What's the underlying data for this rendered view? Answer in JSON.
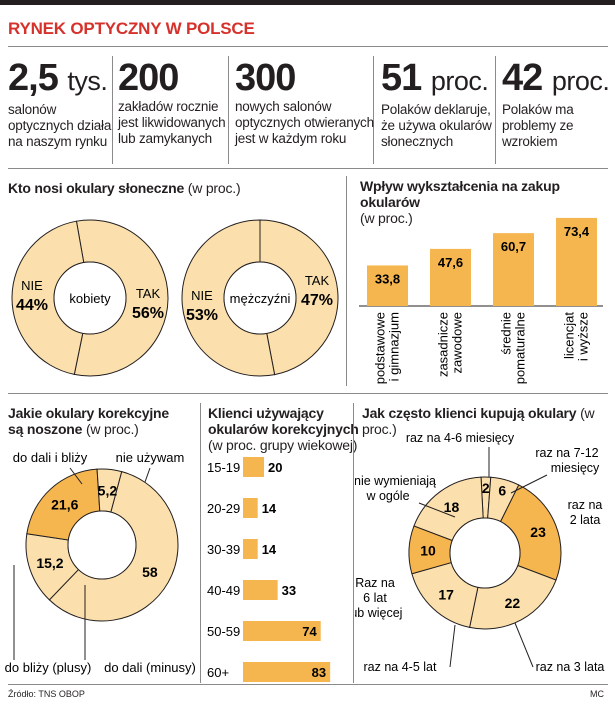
{
  "title": "RYNEK OPTYCZNY W POLSCE",
  "stats": [
    {
      "number": "2,5",
      "unit": "tys.",
      "desc": [
        "salonów",
        "optycznych działa",
        "na naszym rynku"
      ]
    },
    {
      "number": "200",
      "unit": "",
      "desc": [
        "zakładów rocznie",
        "jest likwidowanych",
        "lub zamykanych"
      ]
    },
    {
      "number": "300",
      "unit": "",
      "desc": [
        "nowych salonów",
        "optycznych otwieranych",
        "jest w każdym roku"
      ]
    },
    {
      "number": "51",
      "unit": "proc.",
      "desc": [
        "Polaków deklaruje,",
        "że używa okularów",
        "słonecznych"
      ]
    },
    {
      "number": "42",
      "unit": "proc.",
      "desc": [
        "Polaków ma",
        "problemy ze",
        "wzrokiem"
      ]
    }
  ],
  "sunglasses": {
    "title": "Kto nosi okulary słoneczne",
    "unit": "(w proc.)"
  },
  "education": {
    "title": "Wpływ wykształcenia na zakup okularów",
    "unit": "(w proc.)"
  },
  "corrective": {
    "title_line1": "Jakie okulary korekcyjne",
    "title_line2": "są noszone",
    "unit": "(w proc.)"
  },
  "clients": {
    "title_line1": "Klienci używający",
    "title_line2": "okularów korekcyjnych",
    "unit": "(w proc. grupy wiekowej)"
  },
  "frequency": {
    "title": "Jak często klienci kupują okulary",
    "unit": "(w proc.)"
  },
  "colors": {
    "accent": "#f5b54f",
    "light": "#fbe0ad",
    "medium": "#f7c978",
    "dark": "#231f20",
    "title_red": "#d6322c",
    "line": "#8a8a8a"
  },
  "chart_data": [
    {
      "type": "pie",
      "center_label": "kobiety",
      "slices": [
        {
          "label": "NIE",
          "value": 44,
          "display": "44%"
        },
        {
          "label": "TAK",
          "value": 56,
          "display": "56%"
        }
      ]
    },
    {
      "type": "pie",
      "center_label": "mężczyźni",
      "slices": [
        {
          "label": "NIE",
          "value": 53,
          "display": "53%"
        },
        {
          "label": "TAK",
          "value": 47,
          "display": "47%"
        }
      ]
    },
    {
      "type": "bar",
      "categories": [
        "podstawowe i gimnazjum",
        "zasadnicze zawodowe",
        "średnie i pomaturalne",
        "licencjat i wyższe"
      ],
      "category_lines": [
        [
          "podstawowe",
          "i gimnazjum"
        ],
        [
          "zasadnicze",
          "zawodowe"
        ],
        [
          "średnie",
          "i pomaturalne"
        ],
        [
          "licencjat",
          "i wyższe"
        ]
      ],
      "values": [
        33.8,
        47.6,
        60.7,
        73.4
      ],
      "value_labels": [
        "33,8",
        "47,6",
        "60,7",
        "73,4"
      ],
      "ylim": [
        0,
        80
      ]
    },
    {
      "type": "pie",
      "slices": [
        {
          "label": "nie używam",
          "value": 58,
          "display": "58"
        },
        {
          "label": "do dali (minusy)",
          "value": 15.2,
          "display": "15,2"
        },
        {
          "label": "do bliży (plusy)",
          "value": 21.6,
          "display": "21,6"
        },
        {
          "label": "do dali i bliży",
          "value": 5.2,
          "display": "5,2"
        }
      ]
    },
    {
      "type": "bar",
      "orientation": "horizontal",
      "categories": [
        "15-19",
        "20-29",
        "30-39",
        "40-49",
        "50-59",
        "60+"
      ],
      "values": [
        20,
        14,
        14,
        33,
        74,
        83
      ],
      "xlim": [
        0,
        85
      ]
    },
    {
      "type": "pie",
      "slices": [
        {
          "label": "raz na 4-6 miesięcy",
          "value": 2,
          "display": "2"
        },
        {
          "label": "raz na 7-12 miesięcy",
          "value": 6,
          "display": "6"
        },
        {
          "label": "raz na 2 lata",
          "value": 23,
          "display": "23"
        },
        {
          "label": "raz na 3 lata",
          "value": 22,
          "display": "22"
        },
        {
          "label": "raz na 4-5 lat",
          "value": 17,
          "display": "17"
        },
        {
          "label": "Raz na 6 lat lub więcej",
          "value": 10,
          "display": "10"
        },
        {
          "label": "nie wymieniają w ogóle",
          "value": 18,
          "display": "18"
        }
      ]
    }
  ],
  "footer": {
    "source": "Źródło: TNS OBOP",
    "author": "MC"
  }
}
